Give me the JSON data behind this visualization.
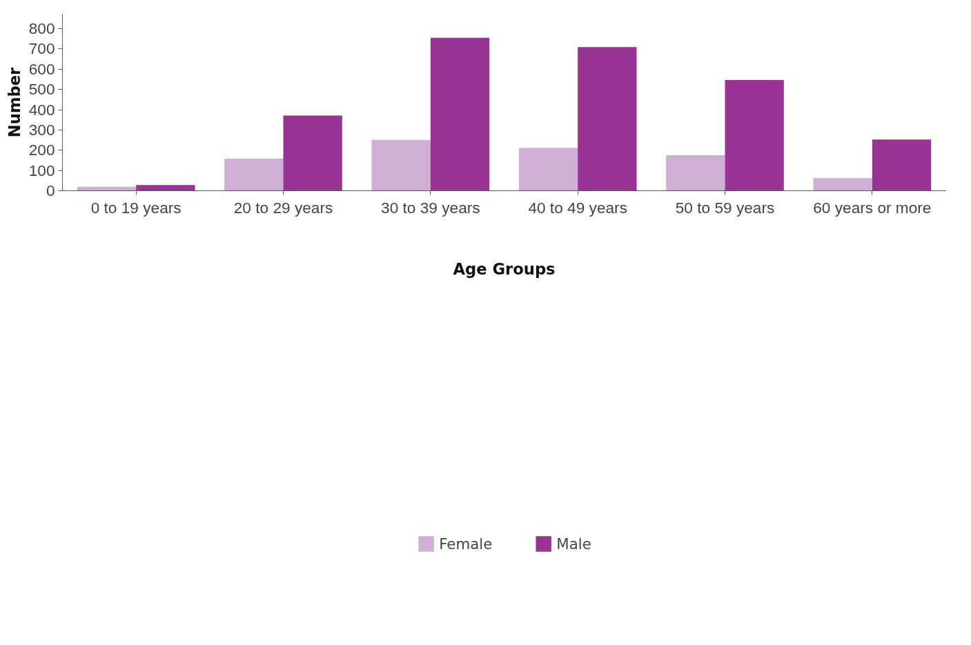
{
  "chart_data": {
    "type": "bar",
    "xlabel": "Age Groups",
    "ylabel": "Number",
    "categories": [
      "0 to 19 years",
      "20 to 29 years",
      "30 to 39 years",
      "40 to 49 years",
      "50 to 59 years",
      "60 years or more"
    ],
    "series": [
      {
        "name": "Female",
        "color": "#cfafd3",
        "values": [
          20,
          158,
          251,
          212,
          175,
          62
        ]
      },
      {
        "name": "Male",
        "color": "#993393",
        "values": [
          28,
          371,
          755,
          709,
          547,
          253
        ]
      }
    ],
    "ylim": [
      0,
      872
    ],
    "yticks": [
      0,
      100,
      200,
      300,
      400,
      500,
      600,
      700,
      800
    ],
    "grid": false,
    "legend": "bottom"
  }
}
